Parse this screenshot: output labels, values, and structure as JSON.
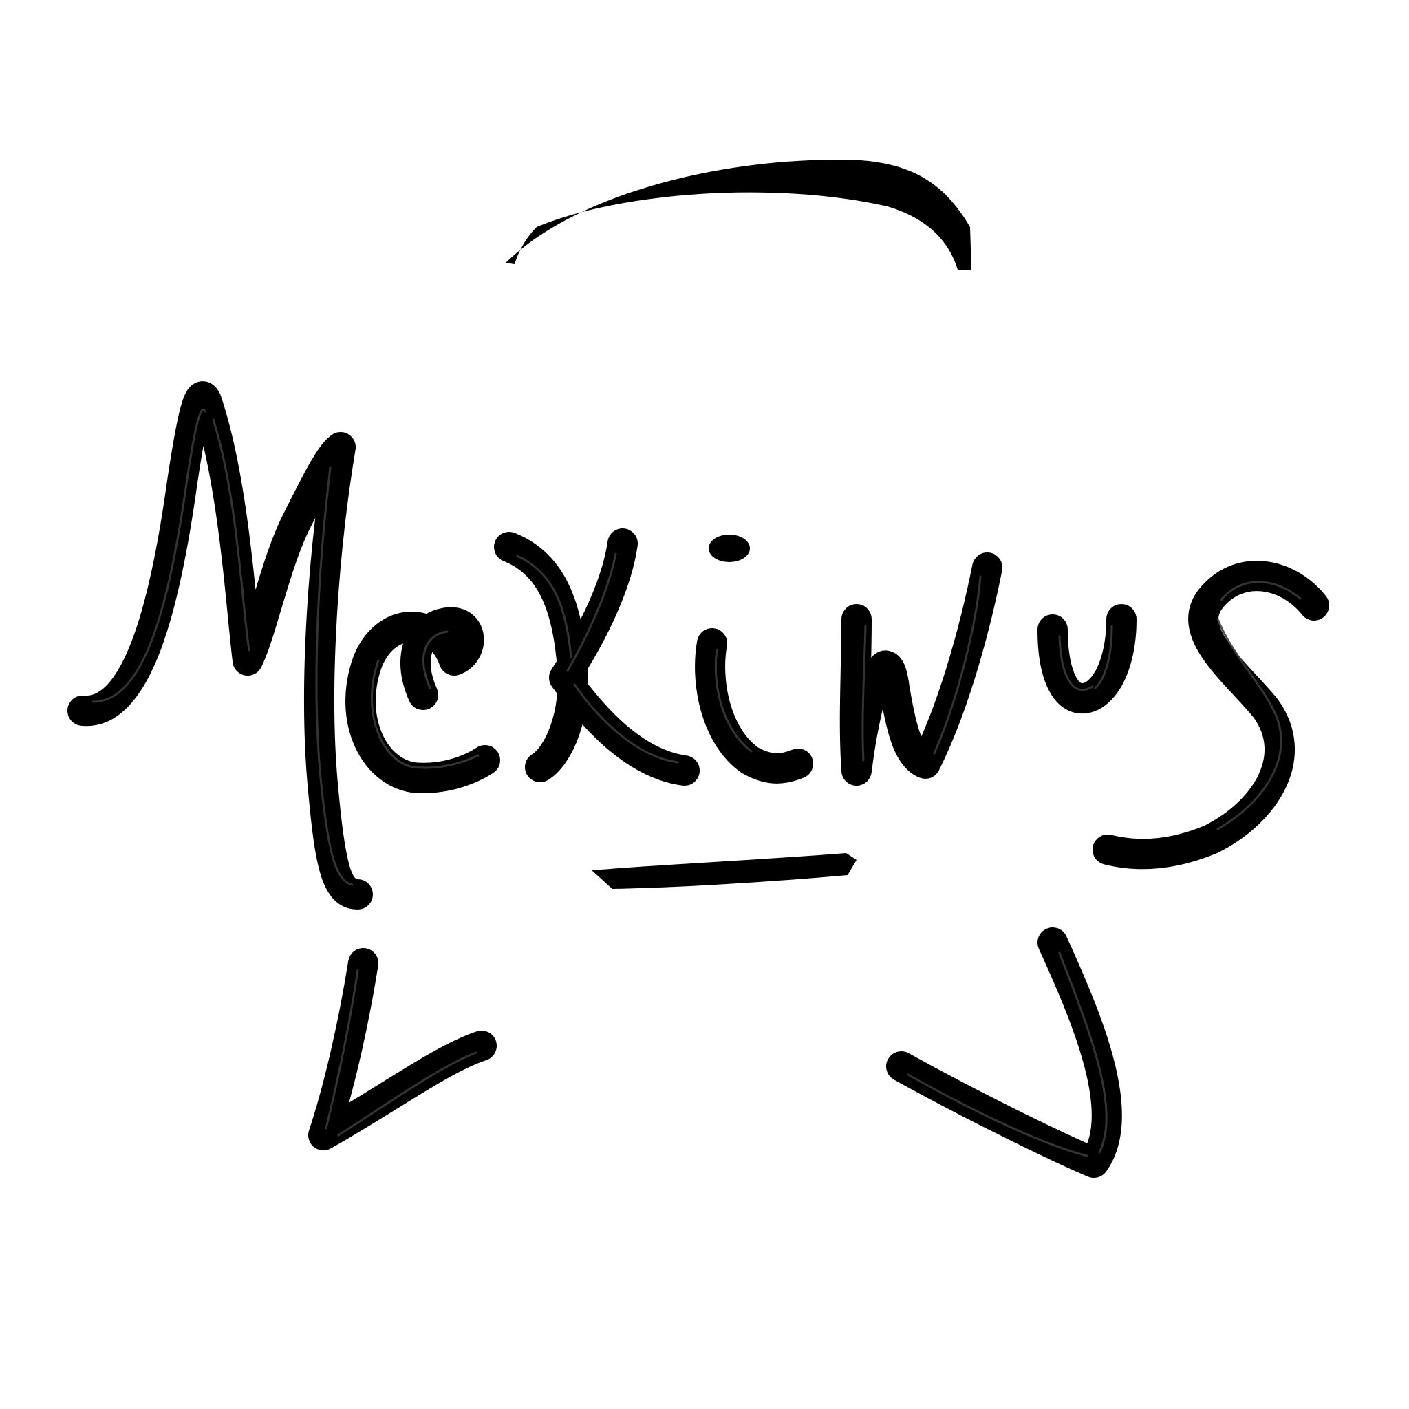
{
  "artwork": {
    "lettering": "McKinus",
    "ink_color": "#000000",
    "background_color": "#ffffff"
  }
}
